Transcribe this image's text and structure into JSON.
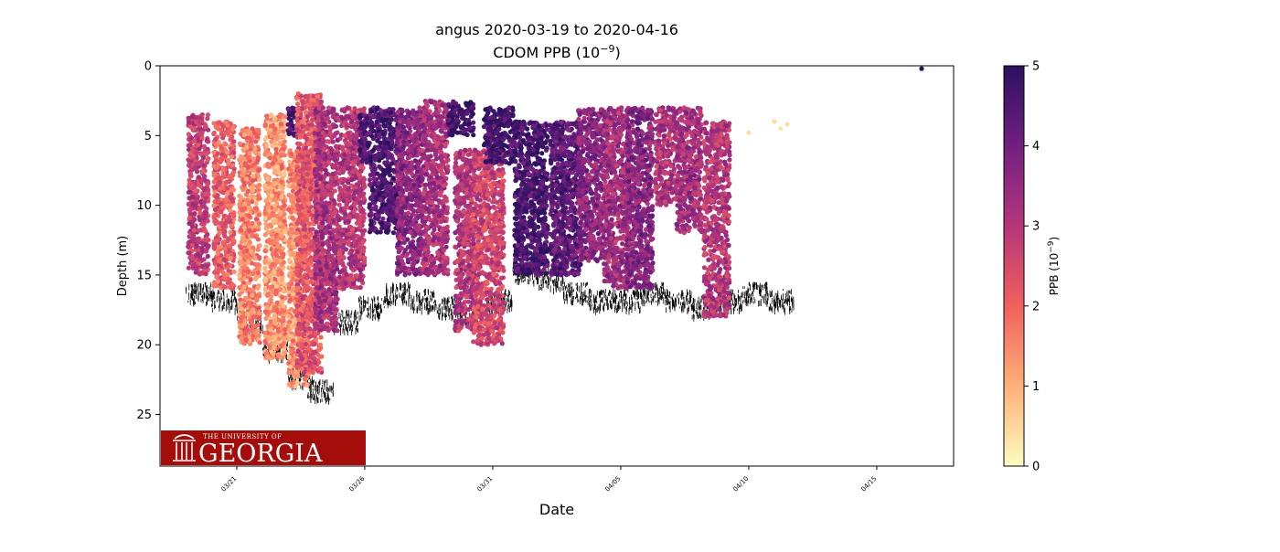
{
  "chart_data": {
    "type": "scatter",
    "title": "angus 2020-03-19 to 2020-04-16",
    "subtitle_base": "CDOM PPB (10",
    "subtitle_exp": "−9",
    "subtitle_end": ")",
    "xlabel": "Date",
    "ylabel": "Depth (m)",
    "x_start": "2020-03-18",
    "x_end": "2020-04-18",
    "ylim": [
      28.7,
      0
    ],
    "yticks": [
      0,
      5,
      10,
      15,
      20,
      25
    ],
    "xticks": [
      {
        "date": "2020-03-21",
        "label": "03/21"
      },
      {
        "date": "2020-03-26",
        "label": "03/26"
      },
      {
        "date": "2020-03-31",
        "label": "03/31"
      },
      {
        "date": "2020-04-05",
        "label": "04/05"
      },
      {
        "date": "2020-04-10",
        "label": "04/10"
      },
      {
        "date": "2020-04-15",
        "label": "04/15"
      }
    ],
    "colorbar": {
      "label_base": "PPB (10",
      "label_exp": "−9",
      "label_end": ")",
      "range": [
        0,
        5
      ],
      "ticks": [
        0,
        1,
        2,
        3,
        4,
        5
      ],
      "colormap": "magma_r",
      "stops": [
        "#fcfdbf",
        "#feb078",
        "#f1605d",
        "#b5367a",
        "#721f81",
        "#2c115f"
      ]
    },
    "series": [
      {
        "type": "profiles",
        "value_range": [
          0,
          5
        ],
        "segments": [
          {
            "date": "2020-03-19 12:00",
            "days": 0.8,
            "depth_top": 3.5,
            "depth_bottom": 15,
            "value": 2.8
          },
          {
            "date": "2020-03-20 12:00",
            "days": 0.8,
            "depth_top": 4,
            "depth_bottom": 16,
            "value": 2.1
          },
          {
            "date": "2020-03-21 12:00",
            "days": 0.8,
            "depth_top": 4.5,
            "depth_bottom": 20,
            "value": 1.6
          },
          {
            "date": "2020-03-22 12:00",
            "days": 0.8,
            "depth_top": 3.5,
            "depth_bottom": 21,
            "value": 1.4
          },
          {
            "date": "2020-03-23 06:00",
            "days": 0.5,
            "depth_top": 3,
            "depth_bottom": 5,
            "value": 4.6
          },
          {
            "date": "2020-03-23 10:00",
            "days": 0.8,
            "depth_top": 6,
            "depth_bottom": 23,
            "value": 1.4
          },
          {
            "date": "2020-03-23 20:00",
            "days": 1.0,
            "depth_top": 2,
            "depth_bottom": 22,
            "value": 2.3
          },
          {
            "date": "2020-03-24 12:00",
            "days": 0.9,
            "depth_top": 3,
            "depth_bottom": 19,
            "value": 3.2
          },
          {
            "date": "2020-03-25 12:00",
            "days": 1.0,
            "depth_top": 3,
            "depth_bottom": 16,
            "value": 3.0
          },
          {
            "date": "2020-03-26 00:00",
            "days": 0.4,
            "depth_top": 3.5,
            "depth_bottom": 7,
            "value": 4.5
          },
          {
            "date": "2020-03-26 20:00",
            "days": 1.3,
            "depth_top": 3,
            "depth_bottom": 12,
            "value": 4.5
          },
          {
            "date": "2020-03-27 18:00",
            "days": 1.0,
            "depth_top": 3,
            "depth_bottom": 15,
            "value": 3.6
          },
          {
            "date": "2020-03-28 18:00",
            "days": 1.0,
            "depth_top": 2.5,
            "depth_bottom": 15,
            "value": 3.2
          },
          {
            "date": "2020-03-29 18:00",
            "days": 1.0,
            "depth_top": 2.5,
            "depth_bottom": 5,
            "value": 4.8
          },
          {
            "date": "2020-03-29 22:00",
            "days": 0.8,
            "depth_top": 6,
            "depth_bottom": 19,
            "value": 3.0
          },
          {
            "date": "2020-03-30 20:00",
            "days": 1.2,
            "depth_top": 6,
            "depth_bottom": 20,
            "value": 2.6
          },
          {
            "date": "2020-03-31 06:00",
            "days": 1.2,
            "depth_top": 3,
            "depth_bottom": 7,
            "value": 4.7
          },
          {
            "date": "2020-04-01 12:00",
            "days": 1.3,
            "depth_top": 4,
            "depth_bottom": 15,
            "value": 4.6
          },
          {
            "date": "2020-04-02 20:00",
            "days": 1.2,
            "depth_top": 4,
            "depth_bottom": 15,
            "value": 4.3
          },
          {
            "date": "2020-04-03 20:00",
            "days": 1.0,
            "depth_top": 3,
            "depth_bottom": 14,
            "value": 3.7
          },
          {
            "date": "2020-04-04 20:00",
            "days": 1.0,
            "depth_top": 3,
            "depth_bottom": 16,
            "value": 3.3
          },
          {
            "date": "2020-04-05 18:00",
            "days": 1.0,
            "depth_top": 3,
            "depth_bottom": 16,
            "value": 3.7
          },
          {
            "date": "2020-04-06 18:00",
            "days": 0.8,
            "depth_top": 3,
            "depth_bottom": 10,
            "value": 3.1
          },
          {
            "date": "2020-04-07 16:00",
            "days": 1.0,
            "depth_top": 3,
            "depth_bottom": 12,
            "value": 3.3
          },
          {
            "date": "2020-04-08 18:00",
            "days": 1.0,
            "depth_top": 4,
            "depth_bottom": 18,
            "value": 3.0
          }
        ],
        "points": [
          {
            "date": "2020-04-11 00:00",
            "depth": 4,
            "value": 0.4
          },
          {
            "date": "2020-04-11 06:00",
            "depth": 4.5,
            "value": 0.3
          },
          {
            "date": "2020-04-11 12:00",
            "depth": 4.2,
            "value": 0.4
          },
          {
            "date": "2020-04-10 00:00",
            "depth": 4.8,
            "value": 0.4
          },
          {
            "date": "2020-04-16 18:00",
            "depth": 0.2,
            "value": 5.0
          }
        ]
      },
      {
        "type": "seafloor",
        "color": "#000000",
        "dates": [
          "2020-03-19 12:00",
          "2020-03-20 12:00",
          "2020-03-21 12:00",
          "2020-03-22 12:00",
          "2020-03-23 12:00",
          "2020-03-24 06:00",
          "2020-03-25 06:00",
          "2020-03-26 06:00",
          "2020-03-27 06:00",
          "2020-03-28 06:00",
          "2020-03-29 06:00",
          "2020-03-30 06:00",
          "2020-03-31 06:00",
          "2020-04-01 06:00",
          "2020-04-02 06:00",
          "2020-04-03 06:00",
          "2020-04-04 06:00",
          "2020-04-05 06:00",
          "2020-04-06 06:00",
          "2020-04-07 06:00",
          "2020-04-08 06:00",
          "2020-04-09 06:00",
          "2020-04-10 06:00",
          "2020-04-11 06:00"
        ],
        "depths": [
          16,
          16.5,
          18,
          20,
          22,
          23,
          18,
          17,
          16,
          16.5,
          17,
          17.5,
          16.5,
          14.5,
          15,
          16,
          16.5,
          16.5,
          16,
          16.5,
          17,
          16.5,
          16,
          16.5
        ]
      }
    ]
  },
  "logo": {
    "small_text": "THE UNIVERSITY OF",
    "big_text": "GEORGIA",
    "background": "#a50d0b"
  }
}
